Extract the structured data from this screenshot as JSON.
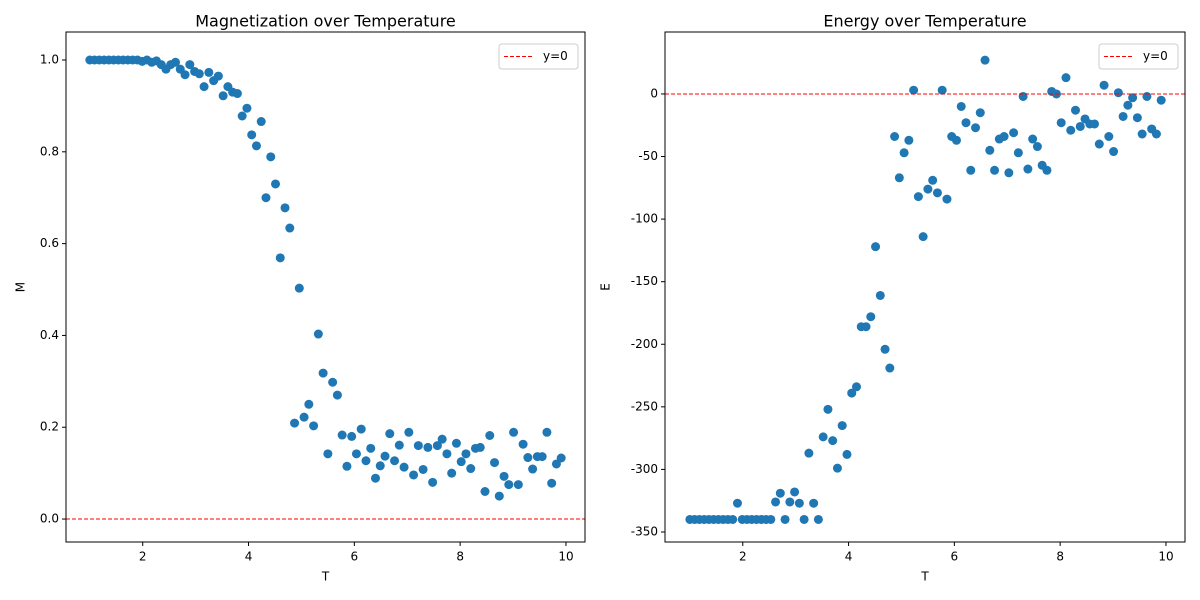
{
  "chart_data": [
    {
      "type": "scatter",
      "title": "Magnetization over Temperature",
      "x_label": "T",
      "y_label": "M",
      "x": [
        1,
        1.09,
        1.18,
        1.27,
        1.36,
        1.45,
        1.54,
        1.63,
        1.72,
        1.81,
        1.9,
        1.99,
        2.08,
        2.17,
        2.26,
        2.35,
        2.44,
        2.53,
        2.62,
        2.71,
        2.8,
        2.89,
        2.98,
        3.07,
        3.16,
        3.25,
        3.34,
        3.43,
        3.52,
        3.61,
        3.7,
        3.79,
        3.88,
        3.97,
        4.06,
        4.15,
        4.24,
        4.33,
        4.42,
        4.51,
        4.6,
        4.69,
        4.78,
        4.87,
        4.96,
        5.05,
        5.14,
        5.23,
        5.32,
        5.41,
        5.5,
        5.59,
        5.68,
        5.77,
        5.86,
        5.95,
        6.04,
        6.13,
        6.22,
        6.31,
        6.4,
        6.49,
        6.58,
        6.67,
        6.76,
        6.85,
        6.94,
        7.03,
        7.12,
        7.21,
        7.3,
        7.39,
        7.48,
        7.57,
        7.66,
        7.75,
        7.84,
        7.93,
        8.02,
        8.11,
        8.2,
        8.29,
        8.38,
        8.47,
        8.56,
        8.65,
        8.74,
        8.83,
        8.92,
        9.01,
        9.1,
        9.19,
        9.28,
        9.37,
        9.46,
        9.55,
        9.64,
        9.73,
        9.82,
        9.91
      ],
      "series": [
        {
          "color": "#1f77b4",
          "values": [
            1,
            1,
            1,
            1,
            1,
            1,
            1,
            1,
            1,
            1,
            1,
            0.997,
            1,
            0.995,
            0.998,
            0.99,
            0.98,
            0.99,
            0.995,
            0.98,
            0.968,
            0.99,
            0.975,
            0.97,
            0.942,
            0.973,
            0.955,
            0.965,
            0.922,
            0.942,
            0.93,
            0.927,
            0.878,
            0.895,
            0.837,
            0.813,
            0.866,
            0.7,
            0.789,
            0.73,
            0.569,
            0.678,
            0.634,
            0.209,
            0.503,
            0.222,
            0.25,
            0.203,
            0.403,
            0.318,
            0.142,
            0.298,
            0.27,
            0.183,
            0.115,
            0.18,
            0.142,
            0.196,
            0.127,
            0.154,
            0.089,
            0.116,
            0.137,
            0.186,
            0.127,
            0.161,
            0.113,
            0.189,
            0.096,
            0.16,
            0.108,
            0.156,
            0.08,
            0.16,
            0.174,
            0.142,
            0.1,
            0.165,
            0.125,
            0.142,
            0.11,
            0.154,
            0.156,
            0.06,
            0.182,
            0.123,
            0.05,
            0.093,
            0.075,
            0.189,
            0.075,
            0.163,
            0.134,
            0.109,
            0.136,
            0.136,
            0.189,
            0.078,
            0.12,
            0.133
          ]
        }
      ],
      "reference_line": {
        "name": "y=0",
        "value": 0,
        "color": "#ff0000"
      },
      "legend": "upper right",
      "xlim": [
        0.55,
        10.36
      ],
      "xticks": [
        2,
        4,
        6,
        8,
        10
      ],
      "ylim": [
        -0.05,
        1.061
      ],
      "yticks": [
        {
          "value": 0,
          "label": "0.0"
        },
        0.2,
        0.4,
        0.6,
        0.8,
        {
          "value": 1,
          "label": "1.0"
        }
      ]
    },
    {
      "type": "scatter",
      "title": "Energy over Temperature",
      "x_label": "T",
      "y_label": "E",
      "x": [
        1,
        1.09,
        1.18,
        1.27,
        1.36,
        1.45,
        1.54,
        1.63,
        1.72,
        1.81,
        1.9,
        1.99,
        2.08,
        2.17,
        2.26,
        2.35,
        2.44,
        2.53,
        2.62,
        2.71,
        2.8,
        2.89,
        2.98,
        3.07,
        3.16,
        3.25,
        3.34,
        3.43,
        3.52,
        3.61,
        3.7,
        3.79,
        3.88,
        3.97,
        4.06,
        4.15,
        4.24,
        4.33,
        4.42,
        4.51,
        4.6,
        4.69,
        4.78,
        4.87,
        4.96,
        5.05,
        5.14,
        5.23,
        5.32,
        5.41,
        5.5,
        5.59,
        5.68,
        5.77,
        5.86,
        5.95,
        6.04,
        6.13,
        6.22,
        6.31,
        6.4,
        6.49,
        6.58,
        6.67,
        6.76,
        6.85,
        6.94,
        7.03,
        7.12,
        7.21,
        7.3,
        7.39,
        7.48,
        7.57,
        7.66,
        7.75,
        7.84,
        7.93,
        8.02,
        8.11,
        8.2,
        8.29,
        8.38,
        8.47,
        8.56,
        8.65,
        8.74,
        8.83,
        8.92,
        9.01,
        9.1,
        9.19,
        9.28,
        9.37,
        9.46,
        9.55,
        9.64,
        9.73,
        9.82,
        9.91
      ],
      "series": [
        {
          "color": "#1f77b4",
          "values": [
            -340,
            -340,
            -340,
            -340,
            -340,
            -340,
            -340,
            -340,
            -340,
            -340,
            -327,
            -340,
            -340,
            -340,
            -340,
            -340,
            -340,
            -340,
            -326,
            -319,
            -340,
            -326,
            -318,
            -327,
            -340,
            -287,
            -327,
            -340,
            -274,
            -252,
            -277,
            -299,
            -265,
            -288,
            -239,
            -234,
            -186,
            -186,
            -178,
            -122,
            -161,
            -204,
            -219,
            -34,
            -67,
            -47,
            -37,
            3,
            -82,
            -114,
            -76,
            -69,
            -79,
            3,
            -84,
            -34,
            -37,
            -10,
            -23,
            -61,
            -27,
            -15,
            27,
            -45,
            -61,
            -36,
            -34,
            -63,
            -31,
            -47,
            -2,
            -60,
            -36,
            -42,
            -57,
            -61,
            2,
            0,
            -23,
            13,
            -29,
            -13,
            -26,
            -20,
            -24,
            -24,
            -40,
            7,
            -34,
            -46,
            1,
            -18,
            -9,
            -3,
            -19,
            -32,
            -2,
            -28,
            -32,
            -5
          ]
        }
      ],
      "reference_line": {
        "name": "y=0",
        "value": 0,
        "color": "#ff0000"
      },
      "legend": "upper right",
      "xlim": [
        0.53,
        10.36
      ],
      "xticks": [
        2,
        4,
        6,
        8,
        10
      ],
      "ylim": [
        -358,
        49.5
      ],
      "yticks": [
        -350,
        -300,
        -250,
        -200,
        -150,
        -100,
        -50,
        0
      ]
    }
  ]
}
